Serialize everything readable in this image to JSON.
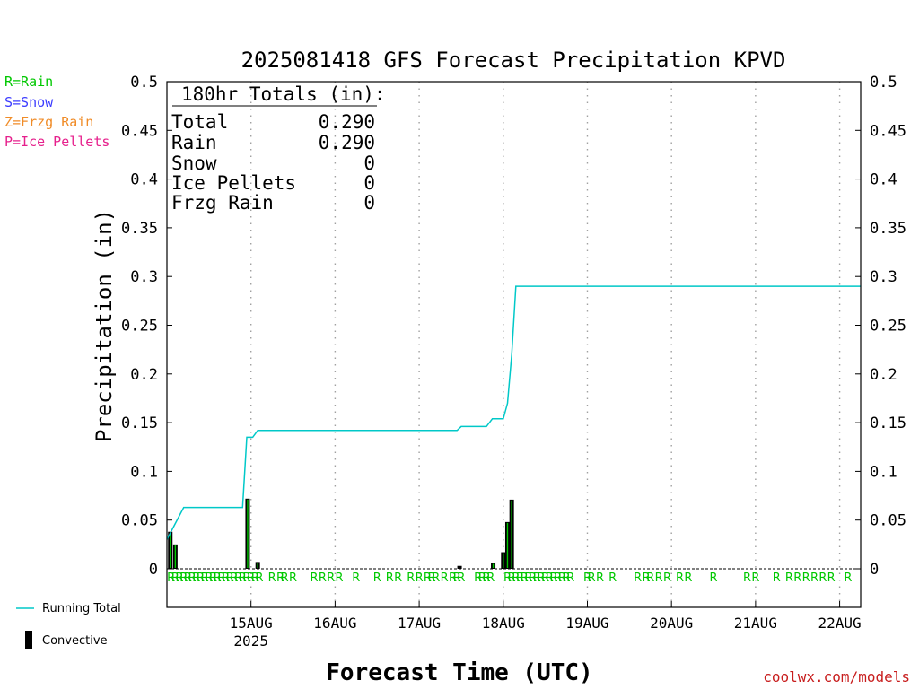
{
  "chart_data": {
    "type": "line",
    "title": "2025081418 GFS Forecast Precipitation KPVD",
    "xlabel": "Forecast Time (UTC)",
    "ylabel": "Precipitation (in)",
    "ylim": [
      0,
      0.5
    ],
    "yticks": [
      "0",
      "0.05",
      "0.1",
      "0.15",
      "0.2",
      "0.25",
      "0.3",
      "0.35",
      "0.4",
      "0.45",
      "0.5"
    ],
    "xticks": [
      {
        "day": 1,
        "label": "15AUG",
        "sub": "2025"
      },
      {
        "day": 2,
        "label": "16AUG",
        "sub": ""
      },
      {
        "day": 3,
        "label": "17AUG",
        "sub": ""
      },
      {
        "day": 4,
        "label": "18AUG",
        "sub": ""
      },
      {
        "day": 5,
        "label": "19AUG",
        "sub": ""
      },
      {
        "day": 6,
        "label": "20AUG",
        "sub": ""
      },
      {
        "day": 7,
        "label": "21AUG",
        "sub": ""
      },
      {
        "day": 8,
        "label": "22AUG",
        "sub": ""
      }
    ],
    "series": [
      {
        "name": "Running Total",
        "color": "#00c8c8",
        "points": [
          [
            0.0,
            0.03
          ],
          [
            0.2,
            0.063
          ],
          [
            0.9,
            0.063
          ],
          [
            0.95,
            0.135
          ],
          [
            1.02,
            0.135
          ],
          [
            1.08,
            0.142
          ],
          [
            2.0,
            0.142
          ],
          [
            3.0,
            0.142
          ],
          [
            3.45,
            0.142
          ],
          [
            3.5,
            0.146
          ],
          [
            3.8,
            0.146
          ],
          [
            3.87,
            0.154
          ],
          [
            4.0,
            0.154
          ],
          [
            4.05,
            0.17
          ],
          [
            4.1,
            0.22
          ],
          [
            4.15,
            0.29
          ],
          [
            5.0,
            0.29
          ],
          [
            6.0,
            0.29
          ],
          [
            7.0,
            0.29
          ],
          [
            8.25,
            0.29
          ]
        ]
      }
    ],
    "bars": {
      "name": "Convective",
      "color": "#000000",
      "highlight": "#00c800",
      "values": [
        [
          0.04,
          0.038
        ],
        [
          0.1,
          0.025
        ],
        [
          0.96,
          0.072
        ],
        [
          1.08,
          0.007
        ],
        [
          3.48,
          0.003
        ],
        [
          3.88,
          0.006
        ],
        [
          4.0,
          0.017
        ],
        [
          4.05,
          0.048
        ],
        [
          4.1,
          0.071
        ]
      ]
    },
    "precip_marks": {
      "symbol": "R",
      "color": "#00c800",
      "times": [
        0.05,
        0.1,
        0.15,
        0.2,
        0.25,
        0.3,
        0.35,
        0.4,
        0.45,
        0.5,
        0.55,
        0.6,
        0.65,
        0.7,
        0.75,
        0.8,
        0.85,
        0.9,
        0.95,
        1.0,
        1.05,
        1.1,
        1.25,
        1.35,
        1.4,
        1.5,
        1.75,
        1.85,
        1.95,
        2.05,
        2.25,
        2.5,
        2.65,
        2.75,
        2.9,
        3.0,
        3.1,
        3.15,
        3.2,
        3.3,
        3.4,
        3.45,
        3.5,
        3.7,
        3.75,
        3.8,
        3.85,
        4.05,
        4.1,
        4.15,
        4.2,
        4.25,
        4.3,
        4.35,
        4.4,
        4.45,
        4.5,
        4.55,
        4.6,
        4.65,
        4.7,
        4.75,
        4.8,
        5.0,
        5.05,
        5.15,
        5.3,
        5.6,
        5.7,
        5.75,
        5.85,
        5.95,
        6.1,
        6.2,
        6.5,
        6.9,
        7.0,
        7.25,
        7.4,
        7.5,
        7.6,
        7.7,
        7.8,
        7.9,
        8.1
      ]
    },
    "legend": [
      {
        "label": "R=Rain",
        "color": "#00c800"
      },
      {
        "label": "S=Snow",
        "color": "#3c3cff"
      },
      {
        "label": "Z=Frzg Rain",
        "color": "#f08c28"
      },
      {
        "label": "P=Ice Pellets",
        "color": "#e6208c"
      }
    ],
    "legend_bottom": [
      {
        "label": "Running Total",
        "kind": "line",
        "color": "#00c8c8"
      },
      {
        "label": "Convective",
        "kind": "bar",
        "color": "#000000"
      }
    ],
    "grid": "vertical dotted",
    "totals": {
      "heading": "180hr Totals (in):",
      "rows": [
        {
          "label": "Total",
          "value": "0.290"
        },
        {
          "label": "Rain",
          "value": "0.290"
        },
        {
          "label": "Snow",
          "value": "0"
        },
        {
          "label": "Ice Pellets",
          "value": "0"
        },
        {
          "label": "Frzg Rain",
          "value": "0"
        }
      ]
    },
    "credit": "coolwx.com/models",
    "credit_color": "#c81e1e"
  }
}
